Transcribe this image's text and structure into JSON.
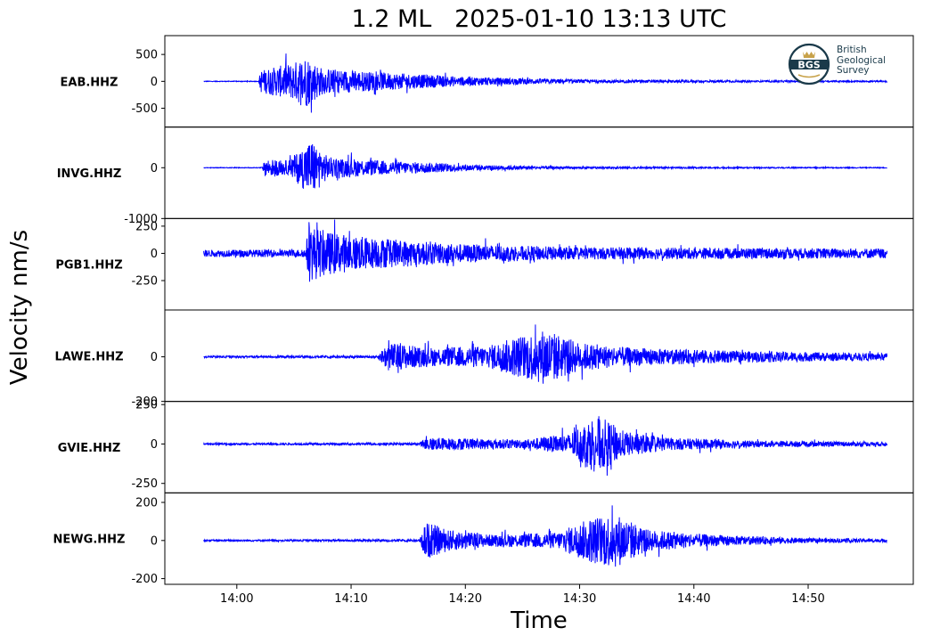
{
  "title": "1.2 ML   2025-01-10 13:13 UTC",
  "logo": {
    "monogram": "BGS",
    "lines": [
      "British",
      "Geological",
      "Survey"
    ]
  },
  "chart_data": {
    "type": "line",
    "title": "1.2 ML   2025-01-10 13:13 UTC",
    "xlabel": "Time",
    "ylabel": "Velocity nm/s",
    "x_ticks": [
      "14:00",
      "14:10",
      "14:20",
      "14:30",
      "14:40",
      "14:50"
    ],
    "x_tick_minutes": [
      0,
      10,
      20,
      30,
      40,
      50
    ],
    "x_range_minutes": [
      -6.3,
      59.2
    ],
    "trace_start_minutes": -2.9,
    "trace_end_minutes": 56.9,
    "line_color": "#0000ff",
    "series": [
      {
        "name": "EAB.HHZ",
        "ylim": [
          -850,
          850
        ],
        "yticks": [
          500,
          0,
          -500
        ],
        "ytick_labels": [
          "500",
          "0",
          "-500"
        ],
        "noise": 8,
        "envelope": [
          [
            -2.9,
            8
          ],
          [
            1.9,
            10
          ],
          [
            2.1,
            300
          ],
          [
            5.0,
            500
          ],
          [
            6.0,
            700
          ],
          [
            7.5,
            350
          ],
          [
            12,
            250
          ],
          [
            20,
            120
          ],
          [
            30,
            45
          ],
          [
            45,
            25
          ],
          [
            56.9,
            18
          ]
        ]
      },
      {
        "name": "INVG.HHZ",
        "ylim": [
          -1000,
          800
        ],
        "yticks": [
          0,
          -1000
        ],
        "ytick_labels": [
          "0",
          "-1000"
        ],
        "noise": 8,
        "envelope": [
          [
            -2.9,
            8
          ],
          [
            2.2,
            10
          ],
          [
            2.5,
            250
          ],
          [
            4.5,
            200
          ],
          [
            6.5,
            800
          ],
          [
            8,
            300
          ],
          [
            14,
            180
          ],
          [
            22,
            70
          ],
          [
            30,
            30
          ],
          [
            45,
            18
          ],
          [
            56.9,
            12
          ]
        ]
      },
      {
        "name": "PGB1.HHZ",
        "ylim": [
          -520,
          320
        ],
        "yticks": [
          250,
          0,
          -250
        ],
        "ytick_labels": [
          "250",
          "0",
          "-250"
        ],
        "noise": 45,
        "envelope": [
          [
            -2.9,
            45
          ],
          [
            6.0,
            50
          ],
          [
            6.3,
            380
          ],
          [
            8,
            280
          ],
          [
            12,
            200
          ],
          [
            20,
            120
          ],
          [
            30,
            80
          ],
          [
            45,
            70
          ],
          [
            56.9,
            65
          ]
        ]
      },
      {
        "name": "LAWE.HHZ",
        "ylim": [
          -200,
          210
        ],
        "yticks": [
          0,
          -200
        ],
        "ytick_labels": [
          "0",
          "-200"
        ],
        "noise": 6,
        "envelope": [
          [
            -2.9,
            6
          ],
          [
            12.3,
            8
          ],
          [
            13.2,
            90
          ],
          [
            17,
            60
          ],
          [
            22,
            70
          ],
          [
            24.5,
            130
          ],
          [
            27,
            180
          ],
          [
            30,
            90
          ],
          [
            35,
            55
          ],
          [
            45,
            35
          ],
          [
            56.9,
            22
          ]
        ]
      },
      {
        "name": "GVIE.HHZ",
        "ylim": [
          -310,
          270
        ],
        "yticks": [
          250,
          0,
          -250
        ],
        "ytick_labels": [
          "250",
          "0",
          "-250"
        ],
        "noise": 8,
        "envelope": [
          [
            -2.9,
            8
          ],
          [
            16.0,
            10
          ],
          [
            16.5,
            60
          ],
          [
            20,
            50
          ],
          [
            25,
            40
          ],
          [
            29,
            90
          ],
          [
            31.5,
            270
          ],
          [
            34,
            110
          ],
          [
            38,
            55
          ],
          [
            45,
            30
          ],
          [
            56.9,
            18
          ]
        ]
      },
      {
        "name": "NEWG.HHZ",
        "ylim": [
          -230,
          250
        ],
        "yticks": [
          200,
          0,
          -200
        ],
        "ytick_labels": [
          "200",
          "0",
          "-200"
        ],
        "noise": 6,
        "envelope": [
          [
            -2.9,
            6
          ],
          [
            16.0,
            8
          ],
          [
            16.5,
            140
          ],
          [
            18.5,
            80
          ],
          [
            22,
            45
          ],
          [
            28,
            60
          ],
          [
            31,
            170
          ],
          [
            33,
            210
          ],
          [
            36,
            80
          ],
          [
            42,
            40
          ],
          [
            50,
            18
          ],
          [
            56.9,
            12
          ]
        ]
      }
    ]
  }
}
